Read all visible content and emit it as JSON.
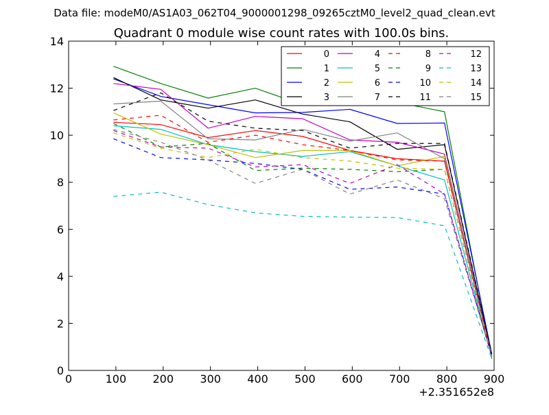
{
  "suptitle": "Data file: modeM0/AS1A03_062T04_9000001298_09265cztM0_level2_quad_clean.evt",
  "chart_data": {
    "type": "line",
    "title": "Quadrant 0 module wise count rates with 100.0s bins.",
    "xlabel": "",
    "ylabel": "",
    "x_offset_label": "+2.351652e8",
    "xlim": [
      0,
      900
    ],
    "ylim": [
      0,
      14
    ],
    "xticks": [
      0,
      100,
      200,
      300,
      400,
      500,
      600,
      700,
      800,
      900
    ],
    "yticks": [
      0,
      2,
      4,
      6,
      8,
      10,
      12,
      14
    ],
    "grid": false,
    "legend_position": "top-right",
    "x": [
      95,
      195,
      295,
      395,
      495,
      595,
      695,
      795,
      895
    ],
    "series": [
      {
        "name": "0",
        "color": "#ff0000",
        "dash": "solid",
        "values": [
          10.55,
          10.45,
          9.9,
          10.2,
          9.95,
          9.35,
          9.0,
          8.9,
          0.6
        ]
      },
      {
        "name": "1",
        "color": "#008000",
        "dash": "solid",
        "values": [
          12.93,
          12.2,
          11.58,
          12.0,
          11.3,
          11.35,
          11.4,
          11.0,
          0.5
        ]
      },
      {
        "name": "2",
        "color": "#0000ff",
        "dash": "solid",
        "values": [
          12.4,
          11.65,
          11.3,
          10.95,
          10.97,
          11.1,
          10.5,
          10.52,
          0.7
        ]
      },
      {
        "name": "3",
        "color": "#000000",
        "dash": "solid",
        "values": [
          12.45,
          11.5,
          11.15,
          11.5,
          10.9,
          10.57,
          9.4,
          9.6,
          0.65
        ]
      },
      {
        "name": "4",
        "color": "#bf00bf",
        "dash": "solid",
        "values": [
          12.2,
          11.95,
          10.3,
          10.8,
          10.7,
          9.8,
          9.7,
          9.2,
          0.6
        ]
      },
      {
        "name": "5",
        "color": "#00bfbf",
        "dash": "solid",
        "values": [
          10.4,
          10.25,
          9.6,
          9.3,
          9.1,
          9.3,
          8.7,
          8.1,
          0.55
        ]
      },
      {
        "name": "6",
        "color": "#bfbf00",
        "dash": "solid",
        "values": [
          10.95,
          10.05,
          9.6,
          9.05,
          9.35,
          9.35,
          8.7,
          9.1,
          0.55
        ]
      },
      {
        "name": "7",
        "color": "#808080",
        "dash": "solid",
        "values": [
          11.33,
          11.45,
          9.85,
          9.8,
          10.25,
          9.75,
          10.1,
          9.0,
          0.6
        ]
      },
      {
        "name": "8",
        "color": "#ff0000",
        "dash": "dashed",
        "values": [
          10.65,
          10.85,
          9.7,
          10.0,
          9.6,
          9.35,
          8.95,
          8.9,
          0.6
        ]
      },
      {
        "name": "9",
        "color": "#008000",
        "dash": "dashed",
        "values": [
          10.5,
          9.5,
          9.65,
          8.5,
          8.6,
          8.55,
          8.45,
          8.55,
          0.55
        ]
      },
      {
        "name": "10",
        "color": "#0000ff",
        "dash": "dashed",
        "values": [
          9.85,
          9.05,
          8.95,
          8.8,
          8.55,
          7.7,
          7.8,
          7.5,
          0.6
        ]
      },
      {
        "name": "11",
        "color": "#000000",
        "dash": "dashed",
        "values": [
          11.05,
          11.8,
          10.6,
          10.3,
          10.2,
          9.45,
          9.65,
          9.65,
          0.7
        ]
      },
      {
        "name": "12",
        "color": "#bf00bf",
        "dash": "dashed",
        "values": [
          10.2,
          9.5,
          9.45,
          8.65,
          8.75,
          7.95,
          8.75,
          7.5,
          0.6
        ]
      },
      {
        "name": "13",
        "color": "#00bfbf",
        "dash": "dashed",
        "values": [
          7.4,
          7.58,
          7.05,
          6.7,
          6.55,
          6.52,
          6.5,
          6.15,
          0.5
        ]
      },
      {
        "name": "14",
        "color": "#bfbf00",
        "dash": "dashed",
        "values": [
          10.1,
          9.45,
          9.05,
          9.4,
          9.05,
          8.9,
          8.6,
          8.55,
          0.55
        ]
      },
      {
        "name": "15",
        "color": "#808080",
        "dash": "dashed",
        "values": [
          10.25,
          9.7,
          8.95,
          7.95,
          8.55,
          7.5,
          8.1,
          7.3,
          0.6
        ]
      }
    ]
  }
}
